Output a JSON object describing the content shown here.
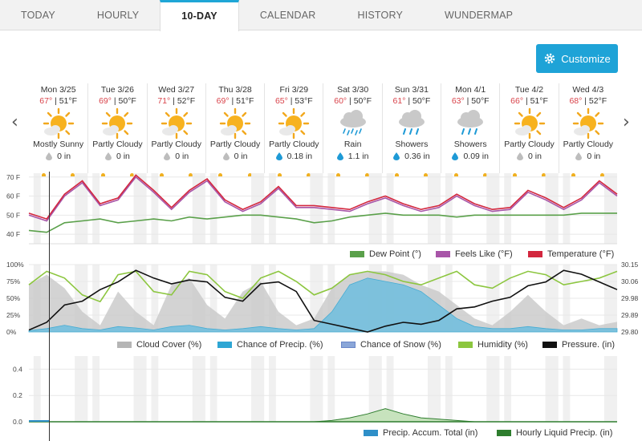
{
  "tabs": [
    {
      "label": "TODAY",
      "active": false
    },
    {
      "label": "HOURLY",
      "active": false
    },
    {
      "label": "10-DAY",
      "active": true
    },
    {
      "label": "CALENDAR",
      "active": false
    },
    {
      "label": "HISTORY",
      "active": false
    },
    {
      "label": "WUNDERMAP",
      "active": false
    }
  ],
  "customize_label": "Customize",
  "nav": {
    "prev": "‹",
    "next": "›"
  },
  "days": [
    {
      "date": "Mon 3/25",
      "hi": "67°",
      "lo": "51°F",
      "icon": "sun-cloud-icon",
      "cond": "Mostly Sunny",
      "precip": "0 in",
      "drop": "gray"
    },
    {
      "date": "Tue 3/26",
      "hi": "69°",
      "lo": "50°F",
      "icon": "sun-cloud-icon",
      "cond": "Partly Cloudy",
      "precip": "0 in",
      "drop": "gray"
    },
    {
      "date": "Wed 3/27",
      "hi": "71°",
      "lo": "52°F",
      "icon": "sun-cloud-icon",
      "cond": "Partly Cloudy",
      "precip": "0 in",
      "drop": "gray"
    },
    {
      "date": "Thu 3/28",
      "hi": "69°",
      "lo": "51°F",
      "icon": "sun-cloud-icon",
      "cond": "Partly Cloudy",
      "precip": "0 in",
      "drop": "gray"
    },
    {
      "date": "Fri 3/29",
      "hi": "65°",
      "lo": "53°F",
      "icon": "sun-cloud-icon",
      "cond": "Partly Cloudy",
      "precip": "0.18 in",
      "drop": "blue"
    },
    {
      "date": "Sat 3/30",
      "hi": "60°",
      "lo": "50°F",
      "icon": "rain-icon",
      "cond": "Rain",
      "precip": "1.1 in",
      "drop": "blue"
    },
    {
      "date": "Sun 3/31",
      "hi": "61°",
      "lo": "50°F",
      "icon": "showers-icon",
      "cond": "Showers",
      "precip": "0.36 in",
      "drop": "blue"
    },
    {
      "date": "Mon 4/1",
      "hi": "63°",
      "lo": "50°F",
      "icon": "showers-icon",
      "cond": "Showers",
      "precip": "0.09 in",
      "drop": "blue"
    },
    {
      "date": "Tue 4/2",
      "hi": "66°",
      "lo": "51°F",
      "icon": "sun-cloud-icon",
      "cond": "Partly Cloudy",
      "precip": "0 in",
      "drop": "gray"
    },
    {
      "date": "Wed 4/3",
      "hi": "68°",
      "lo": "52°F",
      "icon": "sun-cloud-icon",
      "cond": "Partly Cloudy",
      "precip": "0 in",
      "drop": "gray"
    }
  ],
  "colors": {
    "temperature": "#d3273e",
    "feels_like": "#a855a8",
    "dew_point": "#5aa04a",
    "cloud_cover": "#b5b5b5",
    "chance_precip": "#2ea6d4",
    "chance_snow": "#8aa6d8",
    "humidity": "#8cc63f",
    "pressure": "#111111",
    "accum": "#2e8fc8",
    "hourly_precip": "#2e7d2e"
  },
  "chart_data": [
    {
      "type": "line",
      "y_ticks": [
        "70 F",
        "60 F",
        "50 F",
        "40 F"
      ],
      "ylim": [
        35,
        72
      ],
      "series": [
        {
          "name": "Dew Point (°)",
          "values": [
            42,
            41,
            46,
            47,
            48,
            46,
            47,
            48,
            47,
            49,
            48,
            49,
            50,
            50,
            49,
            48,
            46,
            47,
            49,
            50,
            51,
            50,
            50,
            50,
            49,
            50,
            50,
            50,
            50,
            50,
            50,
            51,
            51,
            51
          ]
        },
        {
          "name": "Feels Like (°F)",
          "values": [
            50,
            47,
            60,
            67,
            55,
            58,
            70,
            62,
            53,
            62,
            68,
            57,
            52,
            56,
            64,
            54,
            54,
            53,
            52,
            56,
            59,
            55,
            52,
            54,
            60,
            55,
            52,
            53,
            62,
            58,
            53,
            58,
            67,
            60
          ]
        },
        {
          "name": "Temperature (°F)",
          "values": [
            51,
            48,
            61,
            68,
            56,
            59,
            71,
            63,
            54,
            63,
            69,
            58,
            53,
            57,
            65,
            55,
            55,
            54,
            53,
            57,
            60,
            56,
            53,
            55,
            61,
            56,
            53,
            54,
            63,
            59,
            54,
            59,
            68,
            61
          ]
        }
      ]
    },
    {
      "type": "area",
      "y_ticks_left": [
        "100%",
        "75%",
        "50%",
        "25%",
        "0%"
      ],
      "y_ticks_right": [
        "30.15",
        "30.06",
        "29.98",
        "29.89",
        "29.80"
      ],
      "ylim": [
        0,
        100
      ],
      "ylim_right": [
        29.8,
        30.15
      ],
      "series": [
        {
          "name": "Cloud Cover (%)",
          "values": [
            70,
            85,
            65,
            30,
            10,
            60,
            30,
            10,
            70,
            80,
            40,
            20,
            60,
            75,
            30,
            10,
            20,
            65,
            85,
            90,
            90,
            85,
            70,
            60,
            40,
            20,
            10,
            30,
            55,
            30,
            10,
            20,
            10,
            15
          ]
        },
        {
          "name": "Chance of Precip. (%)",
          "values": [
            2,
            5,
            10,
            5,
            3,
            8,
            6,
            3,
            8,
            10,
            5,
            3,
            5,
            8,
            5,
            3,
            5,
            30,
            70,
            80,
            75,
            70,
            60,
            40,
            20,
            8,
            5,
            5,
            8,
            5,
            3,
            3,
            5,
            5
          ]
        },
        {
          "name": "Chance of Snow (%)",
          "values": []
        },
        {
          "name": "Humidity (%)",
          "values": [
            70,
            90,
            80,
            55,
            45,
            85,
            90,
            60,
            55,
            90,
            85,
            60,
            50,
            80,
            90,
            75,
            55,
            65,
            85,
            90,
            85,
            75,
            70,
            80,
            90,
            70,
            65,
            80,
            90,
            85,
            70,
            75,
            80,
            90
          ]
        },
        {
          "name": "Pressure. (in)",
          "values": [
            29.81,
            29.85,
            29.94,
            29.96,
            30.02,
            30.06,
            30.12,
            30.08,
            30.05,
            30.07,
            30.06,
            29.98,
            29.96,
            30.05,
            30.06,
            30.01,
            29.86,
            29.84,
            29.82,
            29.8,
            29.83,
            29.85,
            29.84,
            29.86,
            29.92,
            29.93,
            29.96,
            29.98,
            30.04,
            30.06,
            30.12,
            30.1,
            30.06,
            30.02
          ]
        }
      ]
    },
    {
      "type": "area",
      "y_ticks": [
        "0.4",
        "0.2",
        "0.0"
      ],
      "ylim": [
        0,
        0.5
      ],
      "series": [
        {
          "name": "Precip. Accum. Total (in)",
          "values": [
            0,
            0,
            0,
            0,
            0,
            0,
            0,
            0,
            0,
            0,
            0,
            0,
            0,
            0,
            0,
            0,
            0,
            0,
            0,
            0,
            0,
            0,
            0,
            0,
            0,
            0,
            0,
            0,
            0,
            0,
            0,
            0,
            0,
            0
          ]
        },
        {
          "name": "Hourly Liquid Precip. (in)",
          "values": [
            0,
            0,
            0,
            0,
            0,
            0,
            0,
            0,
            0,
            0,
            0,
            0,
            0,
            0,
            0,
            0,
            0,
            0.01,
            0.03,
            0.06,
            0.1,
            0.06,
            0.03,
            0.02,
            0.01,
            0,
            0,
            0,
            0,
            0,
            0,
            0,
            0,
            0
          ]
        }
      ]
    }
  ]
}
